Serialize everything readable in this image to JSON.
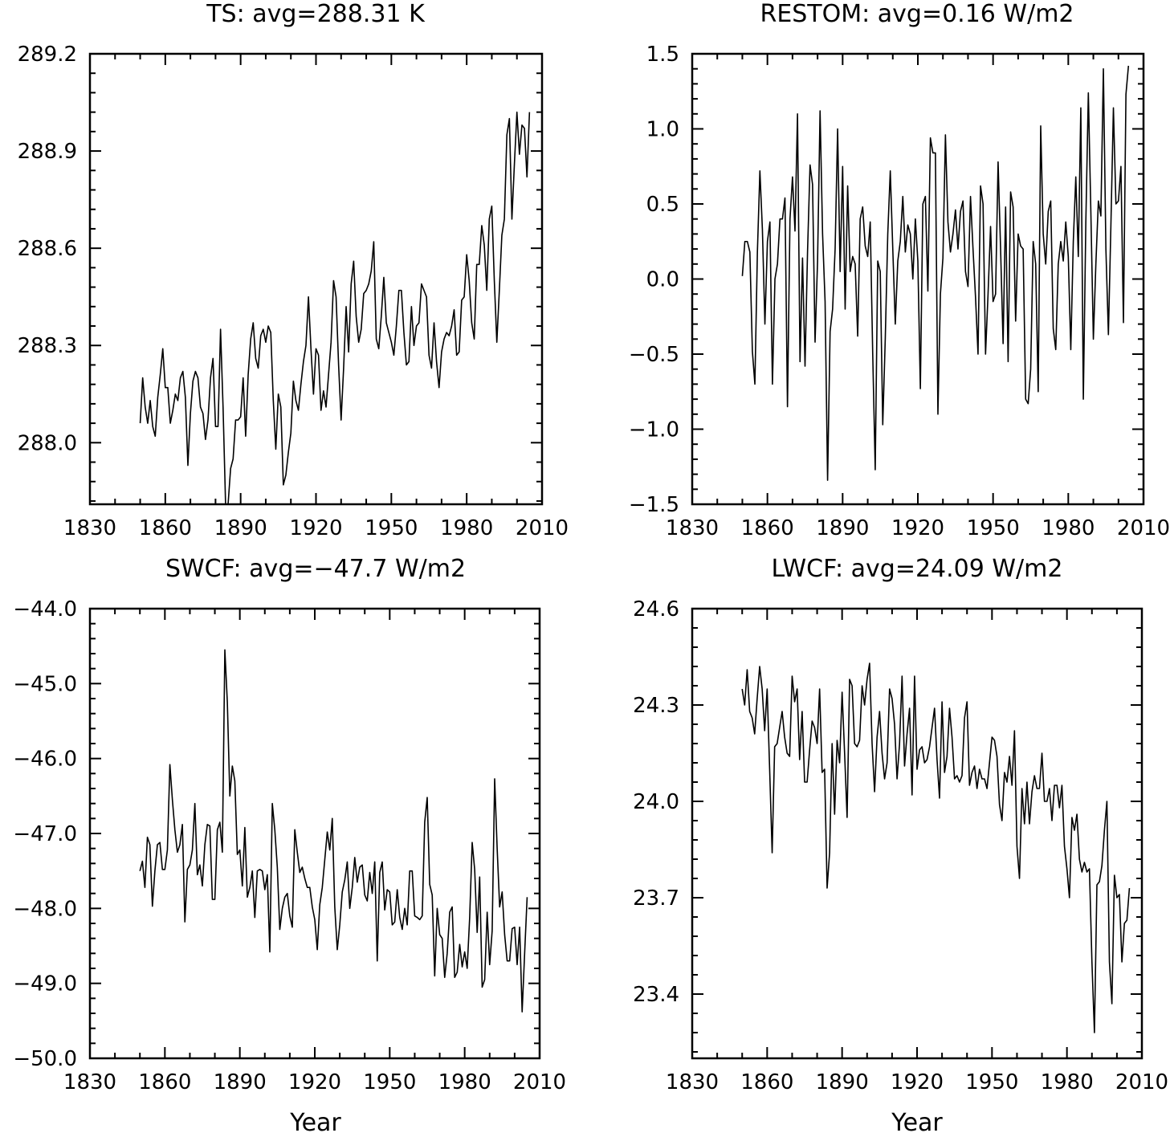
{
  "chart_data": [
    {
      "type": "line",
      "title": "TS: avg=288.31 K",
      "xlabel": "",
      "ylabel": "",
      "xlim": [
        1830,
        2010
      ],
      "ylim": [
        287.81,
        289.2
      ],
      "xticks": [
        "1830",
        "1860",
        "1890",
        "1920",
        "1950",
        "1980",
        "2010"
      ],
      "yticks": [
        "288.0",
        "288.3",
        "288.6",
        "288.9",
        "289.2"
      ],
      "grid": false,
      "series": [
        {
          "x_start": 1850,
          "values": [
            288.06,
            288.2,
            288.11,
            288.06,
            288.13,
            288.05,
            288.02,
            288.14,
            288.21,
            288.29,
            288.17,
            288.17,
            288.06,
            288.1,
            288.15,
            288.13,
            288.2,
            288.22,
            288.14,
            287.93,
            288.09,
            288.19,
            288.22,
            288.2,
            288.11,
            288.09,
            288.01,
            288.07,
            288.2,
            288.26,
            288.05,
            288.05,
            288.35,
            288.11,
            287.81,
            287.81,
            287.92,
            287.95,
            288.07,
            288.07,
            288.08,
            288.2,
            288.02,
            288.21,
            288.32,
            288.37,
            288.26,
            288.23,
            288.33,
            288.35,
            288.31,
            288.36,
            288.34,
            288.13,
            287.98,
            288.15,
            288.11,
            287.87,
            287.9,
            287.97,
            288.03,
            288.19,
            288.13,
            288.1,
            288.18,
            288.25,
            288.3,
            288.45,
            288.29,
            288.15,
            288.29,
            288.27,
            288.1,
            288.16,
            288.11,
            288.21,
            288.31,
            288.5,
            288.45,
            288.24,
            288.07,
            288.23,
            288.42,
            288.28,
            288.49,
            288.56,
            288.39,
            288.31,
            288.35,
            288.46,
            288.47,
            288.49,
            288.53,
            288.62,
            288.32,
            288.29,
            288.39,
            288.51,
            288.37,
            288.34,
            288.31,
            288.27,
            288.36,
            288.47,
            288.47,
            288.34,
            288.24,
            288.25,
            288.42,
            288.3,
            288.36,
            288.37,
            288.49,
            288.47,
            288.45,
            288.27,
            288.23,
            288.37,
            288.25,
            288.17,
            288.28,
            288.32,
            288.34,
            288.33,
            288.36,
            288.41,
            288.27,
            288.28,
            288.44,
            288.45,
            288.58,
            288.5,
            288.37,
            288.32,
            288.55,
            288.55,
            288.67,
            288.61,
            288.47,
            288.69,
            288.73,
            288.5,
            288.31,
            288.47,
            288.64,
            288.69,
            288.95,
            289.0,
            288.69,
            288.86,
            289.02,
            288.89,
            288.98,
            288.97,
            288.82,
            289.02
          ]
        }
      ]
    },
    {
      "type": "line",
      "title": "RESTOM: avg=0.16 W/m2",
      "xlabel": "",
      "ylabel": "",
      "xlim": [
        1830,
        2010
      ],
      "ylim": [
        -1.5,
        1.5
      ],
      "xticks": [
        "1830",
        "1860",
        "1890",
        "1920",
        "1950",
        "1980",
        "2010"
      ],
      "yticks": [
        "−1.5",
        "−1.0",
        "−0.5",
        "0.0",
        "0.5",
        "1.0",
        "1.5"
      ],
      "grid": false,
      "series": [
        {
          "x_start": 1850,
          "values": [
            0.02,
            0.25,
            0.25,
            0.18,
            -0.48,
            -0.7,
            0.18,
            0.72,
            0.33,
            -0.3,
            0.25,
            0.38,
            -0.7,
            0.0,
            0.1,
            0.4,
            0.4,
            0.54,
            -0.85,
            0.4,
            0.68,
            0.32,
            1.1,
            -0.55,
            0.14,
            -0.58,
            0.18,
            0.76,
            0.63,
            -0.42,
            0.12,
            1.12,
            0.3,
            -0.15,
            -1.34,
            -0.35,
            -0.2,
            0.2,
            1.0,
            0.05,
            0.75,
            -0.2,
            0.62,
            0.05,
            0.15,
            0.1,
            -0.38,
            0.4,
            0.48,
            0.22,
            0.15,
            0.38,
            -0.5,
            -1.27,
            0.12,
            0.05,
            -0.97,
            -0.4,
            0.3,
            0.72,
            0.2,
            -0.3,
            0.12,
            0.25,
            0.55,
            0.18,
            0.36,
            0.3,
            0.0,
            0.4,
            0.12,
            -0.73,
            0.5,
            0.55,
            -0.08,
            0.94,
            0.84,
            0.84,
            -0.9,
            -0.1,
            0.14,
            0.96,
            0.38,
            0.18,
            0.3,
            0.46,
            0.2,
            0.45,
            0.52,
            0.05,
            -0.05,
            0.55,
            0.2,
            -0.12,
            -0.5,
            0.62,
            0.5,
            -0.5,
            -0.1,
            0.35,
            -0.15,
            -0.1,
            0.78,
            0.2,
            -0.43,
            0.48,
            -0.55,
            0.58,
            0.48,
            -0.28,
            0.3,
            0.22,
            0.2,
            -0.8,
            -0.83,
            -0.6,
            0.25,
            0.1,
            -0.75,
            1.02,
            0.3,
            0.1,
            0.45,
            0.52,
            -0.33,
            -0.47,
            0.1,
            0.25,
            0.12,
            0.38,
            0.15,
            -0.47,
            0.25,
            0.68,
            0.15,
            1.14,
            -0.8,
            0.38,
            1.24,
            0.45,
            -0.4,
            0.1,
            0.52,
            0.42,
            1.4,
            0.2,
            -0.37,
            0.36,
            1.14,
            0.5,
            0.52,
            0.75,
            -0.29,
            1.23,
            1.42
          ]
        }
      ]
    },
    {
      "type": "line",
      "title": "SWCF: avg=−47.7 W/m2",
      "xlabel": "Year",
      "ylabel": "",
      "xlim": [
        1830,
        2010
      ],
      "ylim": [
        -50.0,
        -44.0
      ],
      "xticks": [
        "1830",
        "1860",
        "1890",
        "1920",
        "1950",
        "1980",
        "2010"
      ],
      "yticks": [
        "−50.0",
        "−49.0",
        "−48.0",
        "−47.0",
        "−46.0",
        "−45.0",
        "−44.0"
      ],
      "grid": false,
      "series": [
        {
          "x_start": 1850,
          "values": [
            -47.5,
            -47.37,
            -47.72,
            -47.05,
            -47.15,
            -47.97,
            -47.5,
            -47.15,
            -47.12,
            -47.48,
            -47.48,
            -47.22,
            -46.08,
            -46.55,
            -46.95,
            -47.25,
            -47.15,
            -46.88,
            -48.18,
            -47.48,
            -47.42,
            -47.22,
            -46.6,
            -47.55,
            -47.42,
            -47.7,
            -47.15,
            -46.88,
            -46.9,
            -47.88,
            -47.88,
            -46.95,
            -46.85,
            -47.25,
            -44.55,
            -45.25,
            -46.5,
            -46.1,
            -46.3,
            -47.28,
            -47.22,
            -47.7,
            -46.92,
            -47.85,
            -47.72,
            -47.5,
            -48.12,
            -47.5,
            -47.48,
            -47.5,
            -47.75,
            -47.55,
            -48.58,
            -46.6,
            -46.95,
            -47.45,
            -48.28,
            -48.0,
            -47.85,
            -47.8,
            -48.1,
            -48.25,
            -46.95,
            -47.25,
            -47.52,
            -47.45,
            -47.6,
            -47.72,
            -47.72,
            -47.98,
            -48.15,
            -48.55,
            -47.95,
            -47.72,
            -47.35,
            -46.98,
            -47.22,
            -46.8,
            -47.98,
            -48.55,
            -48.22,
            -47.78,
            -47.62,
            -47.38,
            -48.0,
            -47.72,
            -47.32,
            -47.65,
            -47.45,
            -47.42,
            -47.82,
            -47.9,
            -47.52,
            -47.8,
            -47.38,
            -48.7,
            -47.52,
            -47.38,
            -48.02,
            -47.75,
            -47.78,
            -48.22,
            -48.18,
            -47.75,
            -48.12,
            -48.28,
            -48.0,
            -48.22,
            -47.5,
            -47.5,
            -48.1,
            -48.12,
            -48.15,
            -48.1,
            -46.85,
            -46.52,
            -47.68,
            -47.82,
            -48.9,
            -48.0,
            -48.35,
            -48.4,
            -48.92,
            -48.6,
            -48.05,
            -47.98,
            -48.92,
            -48.85,
            -48.48,
            -48.78,
            -48.58,
            -48.8,
            -48.12,
            -47.12,
            -47.48,
            -48.32,
            -47.58,
            -49.05,
            -48.95,
            -48.05,
            -48.75,
            -48.3,
            -46.27,
            -47.2,
            -47.98,
            -47.78,
            -48.35,
            -48.7,
            -48.7,
            -48.27,
            -48.25,
            -48.75,
            -48.25,
            -49.38,
            -48.6,
            -47.85
          ]
        }
      ]
    },
    {
      "type": "line",
      "title": "LWCF: avg=24.09 W/m2",
      "xlabel": "Year",
      "ylabel": "",
      "xlim": [
        1830,
        2010
      ],
      "ylim": [
        23.2,
        24.6
      ],
      "xticks": [
        "1830",
        "1860",
        "1890",
        "1920",
        "1950",
        "1980",
        "2010"
      ],
      "yticks": [
        "23.4",
        "23.7",
        "24.0",
        "24.3",
        "24.6"
      ],
      "grid": false,
      "series": [
        {
          "x_start": 1850,
          "values": [
            24.35,
            24.3,
            24.41,
            24.28,
            24.26,
            24.21,
            24.32,
            24.42,
            24.35,
            24.22,
            24.35,
            24.1,
            23.84,
            24.17,
            24.18,
            24.23,
            24.28,
            24.2,
            24.15,
            24.14,
            24.39,
            24.31,
            24.35,
            24.13,
            24.28,
            24.06,
            24.06,
            24.16,
            24.25,
            24.23,
            24.18,
            24.35,
            24.09,
            24.1,
            23.73,
            23.84,
            24.18,
            23.96,
            24.19,
            24.12,
            24.34,
            24.15,
            23.95,
            24.38,
            24.36,
            24.18,
            24.17,
            24.19,
            24.36,
            24.3,
            24.38,
            24.43,
            24.18,
            24.03,
            24.2,
            24.28,
            24.15,
            24.07,
            24.12,
            24.35,
            24.32,
            24.24,
            24.07,
            24.18,
            24.39,
            24.11,
            24.21,
            24.29,
            24.02,
            24.39,
            24.1,
            24.16,
            24.17,
            24.12,
            24.13,
            24.17,
            24.23,
            24.29,
            24.13,
            24.01,
            24.31,
            24.09,
            24.14,
            24.29,
            24.2,
            24.07,
            24.08,
            24.06,
            24.08,
            24.26,
            24.31,
            24.05,
            24.09,
            24.11,
            24.04,
            24.1,
            24.07,
            24.07,
            24.04,
            24.12,
            24.2,
            24.19,
            24.14,
            23.99,
            23.94,
            24.09,
            24.06,
            24.14,
            24.05,
            24.22,
            23.86,
            23.76,
            24.04,
            23.93,
            24.06,
            23.93,
            24.03,
            24.08,
            24.04,
            24.04,
            24.15,
            24.0,
            24.0,
            24.04,
            23.94,
            24.05,
            24.05,
            23.98,
            24.05,
            23.86,
            23.79,
            23.7,
            23.95,
            23.91,
            23.96,
            23.82,
            23.78,
            23.81,
            23.78,
            23.79,
            23.5,
            23.28,
            23.74,
            23.75,
            23.8,
            23.91,
            24.0,
            23.5,
            23.37,
            23.77,
            23.7,
            23.71,
            23.5,
            23.62,
            23.63,
            23.73
          ]
        }
      ]
    }
  ]
}
